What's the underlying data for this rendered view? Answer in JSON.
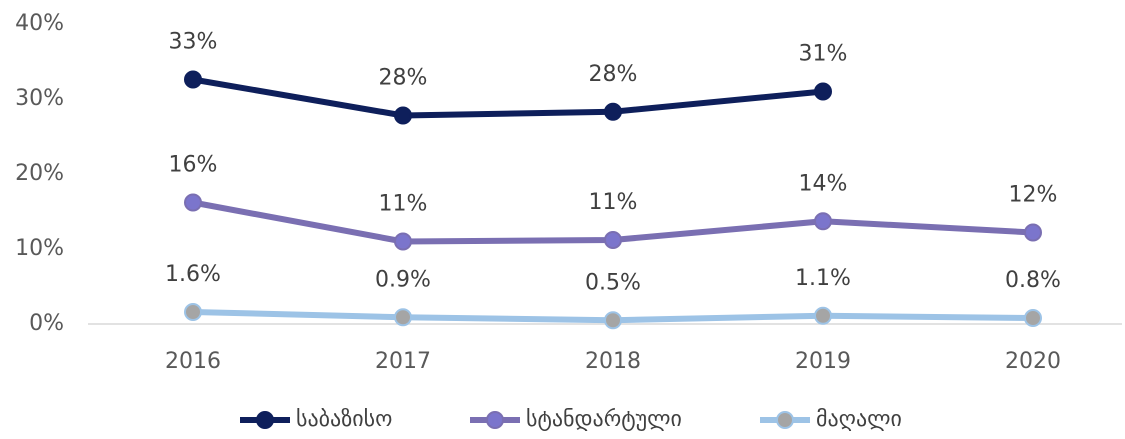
{
  "chart_data": {
    "type": "line",
    "categories": [
      "2016",
      "2017",
      "2018",
      "2019",
      "2020"
    ],
    "series": [
      {
        "name": "საბაზისო",
        "color": "#0e1f5b",
        "marker_color": "#0e1f5b",
        "values": [
          32.6,
          27.8,
          28.3,
          31.0,
          null
        ],
        "value_labels": [
          "33%",
          "28%",
          "28%",
          "31%",
          null
        ]
      },
      {
        "name": "სტანდარტული",
        "color": "#7a6fb2",
        "marker_color": "#7b75cc",
        "values": [
          16.2,
          11.0,
          11.2,
          13.7,
          12.2
        ],
        "value_labels": [
          "16%",
          "11%",
          "11%",
          "14%",
          "12%"
        ]
      },
      {
        "name": "მაღალი",
        "color": "#9dc3e6",
        "marker_color": "#a5a5a5",
        "values": [
          1.6,
          0.9,
          0.5,
          1.1,
          0.8
        ],
        "value_labels": [
          "1.6%",
          "0.9%",
          "0.5%",
          "1.1%",
          "0.8%"
        ]
      }
    ],
    "ylim": [
      0,
      40
    ],
    "yticks": [
      {
        "value": 0,
        "label": "0%"
      },
      {
        "value": 10,
        "label": "10%"
      },
      {
        "value": 20,
        "label": "20%"
      },
      {
        "value": 30,
        "label": "30%"
      },
      {
        "value": 40,
        "label": "40%"
      }
    ],
    "grid": false,
    "legend": "bottom"
  }
}
